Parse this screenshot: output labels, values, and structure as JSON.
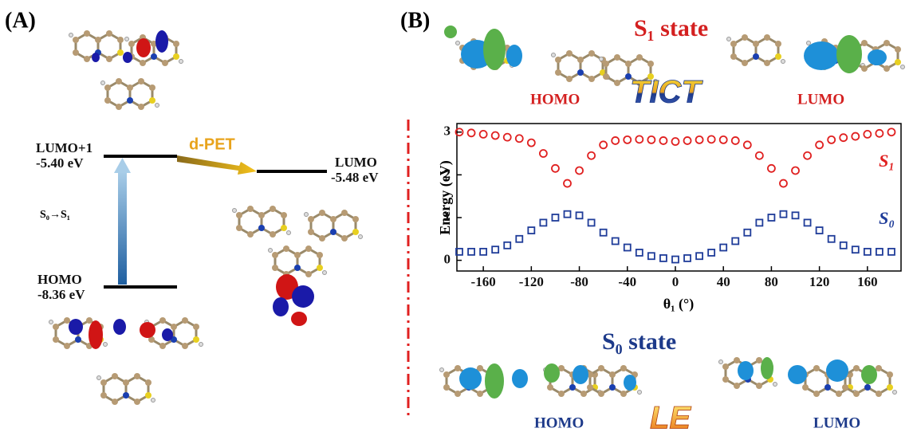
{
  "panel_a": {
    "label": "(A)",
    "levels": [
      {
        "name": "LUMO+1",
        "energy": "-5.40 eV"
      },
      {
        "name": "LUMO",
        "energy": "-5.48 eV"
      },
      {
        "name": "HOMO",
        "energy": "-8.36 eV"
      }
    ],
    "transfer": "d-PET",
    "excitation": "S₀→S₁"
  },
  "panel_b": {
    "label": "(B)",
    "s1_title": "S₁ state",
    "s1_orbitals": [
      "HOMO",
      "LUMO"
    ],
    "s1_mechanism": "TICT",
    "s0_title": "S₀ state",
    "s0_orbitals": [
      "HOMO",
      "LUMO"
    ],
    "s0_mechanism": "LE"
  },
  "chart_data": {
    "type": "scatter",
    "y_label": "Energy (eV)",
    "x_label": "θ₁ (°)",
    "x": [
      -180,
      -170,
      -160,
      -150,
      -140,
      -130,
      -120,
      -110,
      -100,
      -90,
      -80,
      -70,
      -60,
      -50,
      -40,
      -30,
      -20,
      -10,
      0,
      10,
      20,
      30,
      40,
      50,
      60,
      70,
      80,
      90,
      100,
      110,
      120,
      130,
      140,
      150,
      160,
      170,
      180
    ],
    "series": [
      {
        "name": "S₁",
        "color": "#e02020",
        "marker": "circle",
        "values": [
          3.0,
          2.98,
          2.95,
          2.92,
          2.88,
          2.85,
          2.75,
          2.5,
          2.15,
          1.8,
          2.1,
          2.45,
          2.7,
          2.8,
          2.82,
          2.83,
          2.82,
          2.8,
          2.78,
          2.8,
          2.82,
          2.83,
          2.82,
          2.8,
          2.7,
          2.45,
          2.15,
          1.8,
          2.1,
          2.45,
          2.7,
          2.82,
          2.87,
          2.9,
          2.95,
          2.97,
          3.0
        ]
      },
      {
        "name": "S₀",
        "color": "#1f3c99",
        "marker": "square",
        "values": [
          0.2,
          0.2,
          0.2,
          0.25,
          0.35,
          0.5,
          0.7,
          0.88,
          1.0,
          1.08,
          1.05,
          0.88,
          0.65,
          0.45,
          0.3,
          0.18,
          0.1,
          0.05,
          0.02,
          0.05,
          0.1,
          0.18,
          0.3,
          0.45,
          0.65,
          0.88,
          1.0,
          1.08,
          1.05,
          0.88,
          0.7,
          0.5,
          0.35,
          0.25,
          0.2,
          0.2,
          0.2
        ]
      }
    ],
    "xlim": [
      -182,
      188
    ],
    "ylim": [
      -0.25,
      3.2
    ],
    "xticks": [
      -160,
      -120,
      -80,
      -40,
      0,
      40,
      80,
      120,
      160
    ],
    "yticks": [
      0,
      1,
      2,
      3
    ]
  }
}
